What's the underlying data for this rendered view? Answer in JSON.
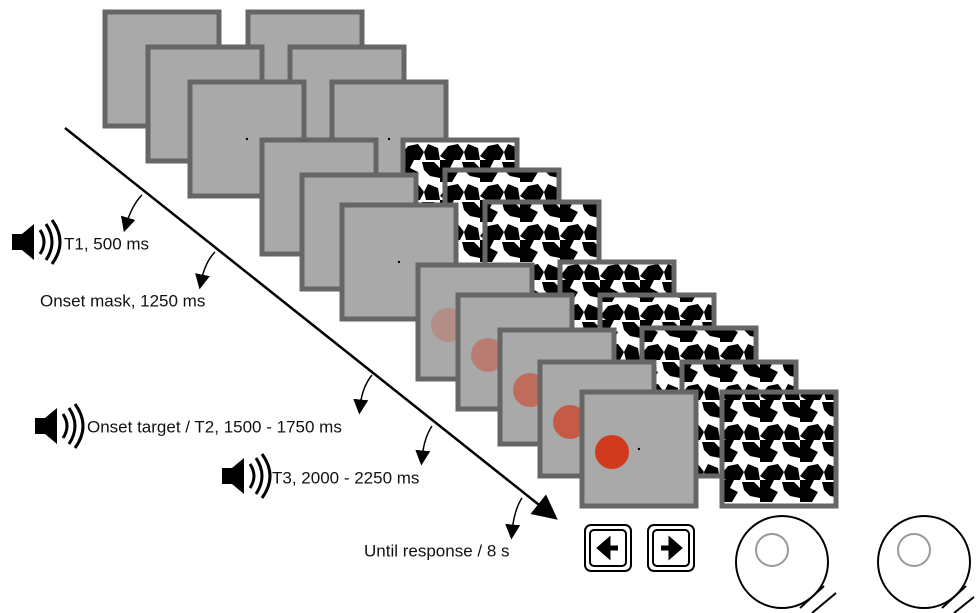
{
  "events": [
    {
      "label": "T1, 500 ms"
    },
    {
      "label": "Onset mask, 1250 ms"
    },
    {
      "label": "Onset target / T2, 1500 - 1750 ms"
    },
    {
      "label": "T3, 2000 - 2250 ms"
    },
    {
      "label": "Until response / 8 s"
    }
  ]
}
